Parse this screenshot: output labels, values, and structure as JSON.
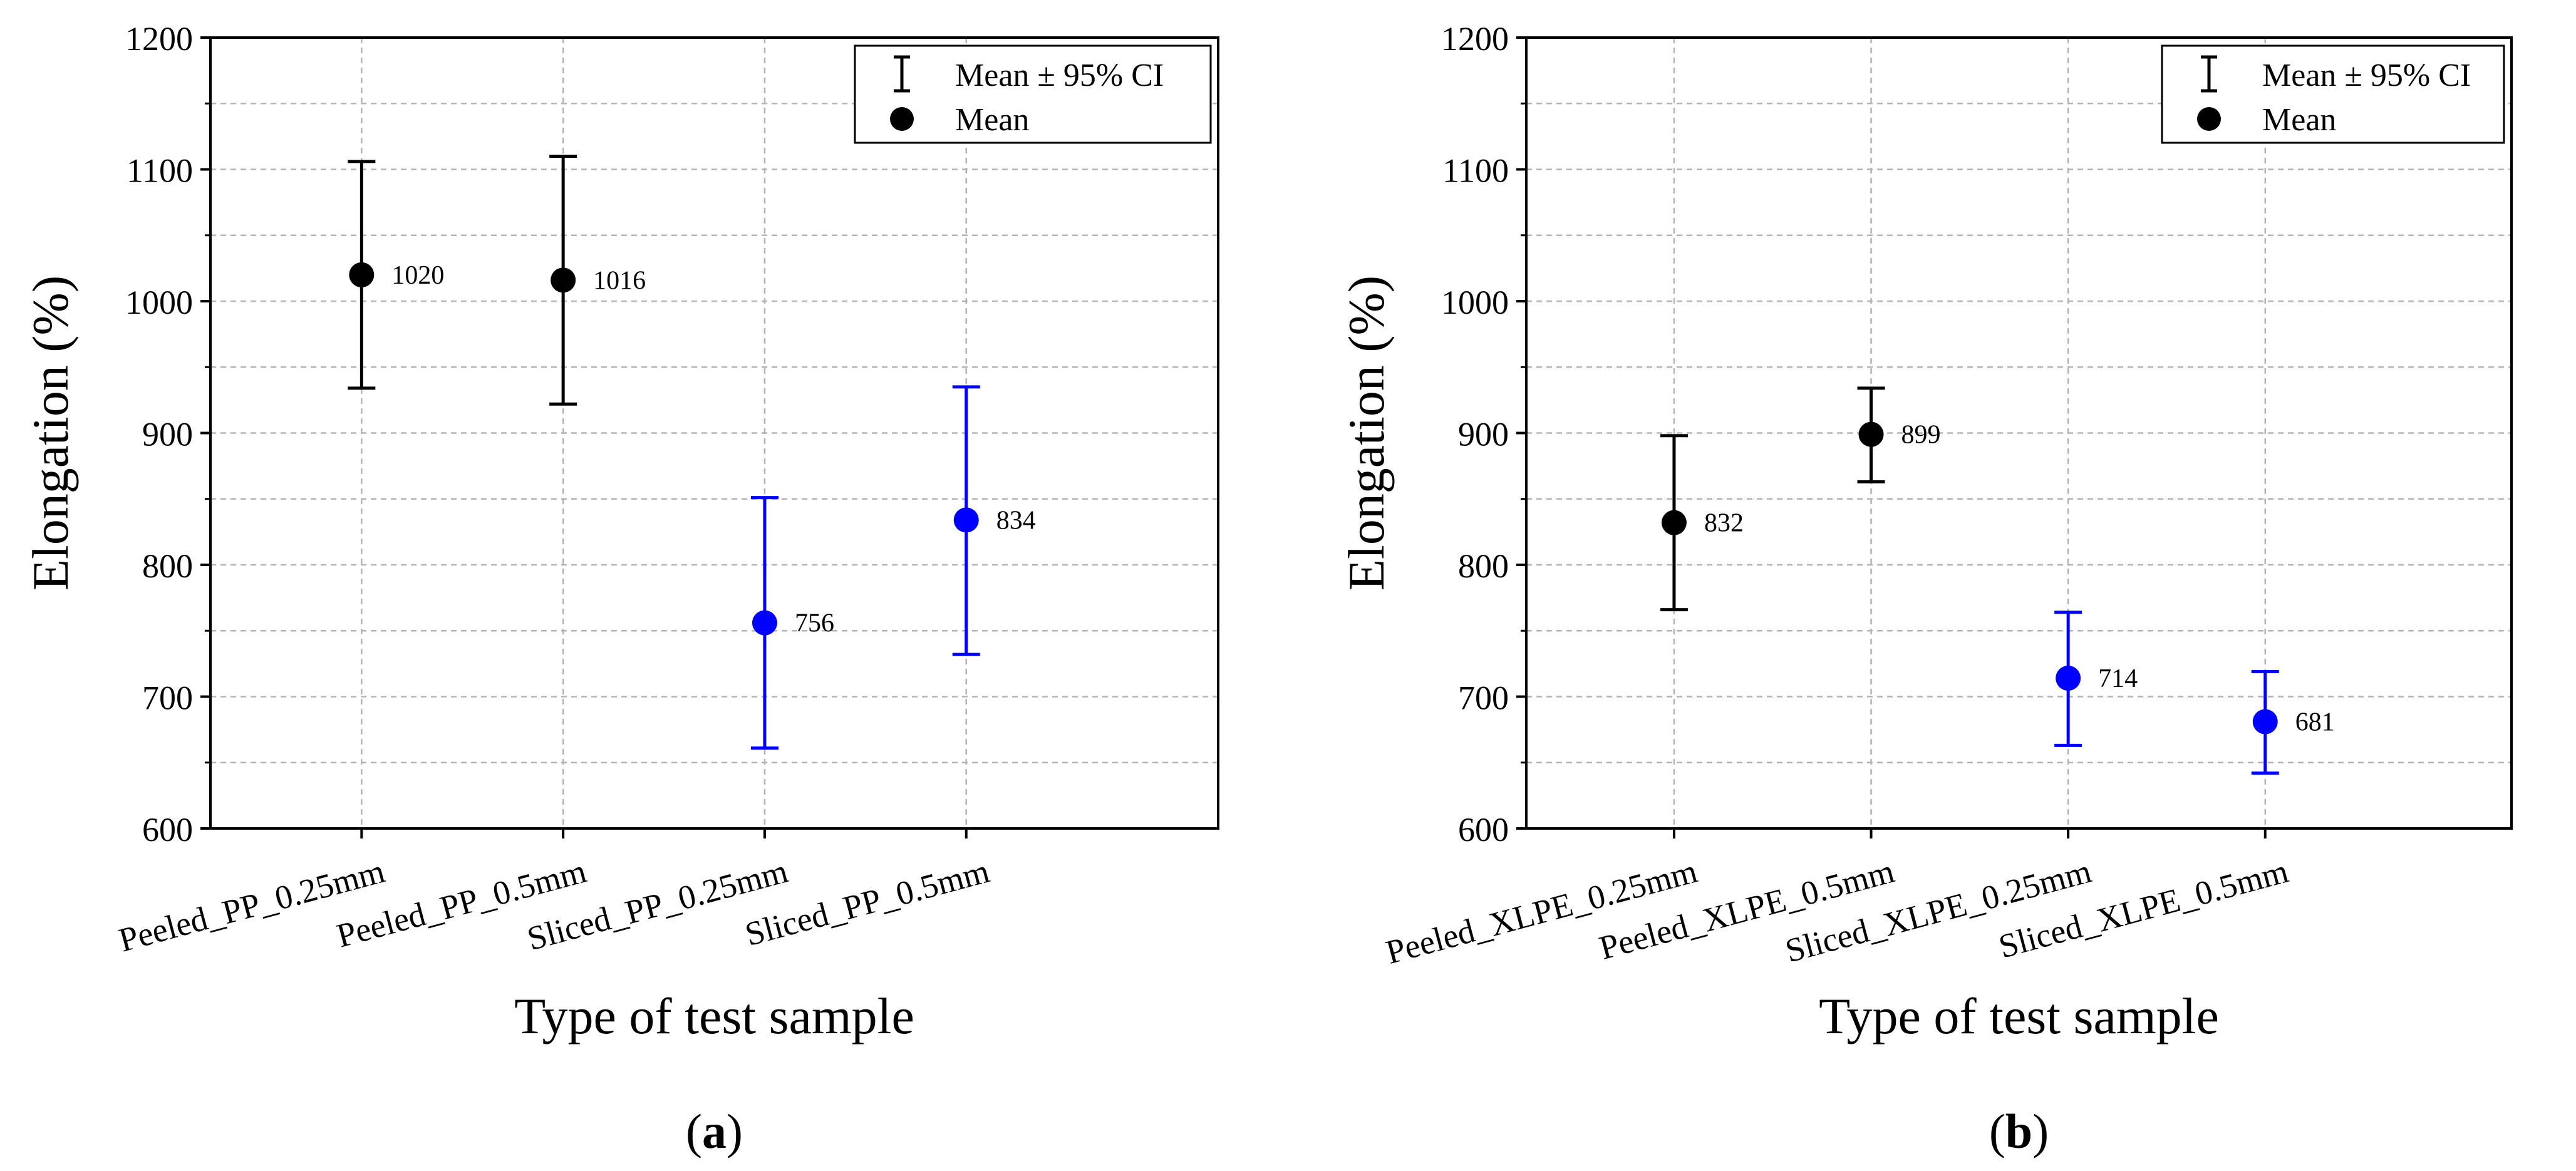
{
  "chart_data": [
    {
      "type": "scatter",
      "subtitle": "(a)",
      "subtitle_letter": "a",
      "xlabel": "Type of test sample",
      "ylabel": "Elongation (%)",
      "ylim": [
        600,
        1200
      ],
      "yticks": [
        600,
        700,
        800,
        900,
        1000,
        1100,
        1200
      ],
      "grid": true,
      "legend": {
        "placement": "top-right",
        "errorbar_label": "Mean ± 95% CI",
        "point_label": "Mean"
      },
      "categories": [
        "Peeled_PP_0.25mm",
        "Peeled_PP_0.5mm",
        "Sliced_PP_0.25mm",
        "Sliced_PP_0.5mm"
      ],
      "points": [
        {
          "category": "Peeled_PP_0.25mm",
          "mean": 1020,
          "ci_low": 934,
          "ci_high": 1106,
          "label": "1020",
          "color": "#000000"
        },
        {
          "category": "Peeled_PP_0.5mm",
          "mean": 1016,
          "ci_low": 922,
          "ci_high": 1110,
          "label": "1016",
          "color": "#000000"
        },
        {
          "category": "Sliced_PP_0.25mm",
          "mean": 756,
          "ci_low": 661,
          "ci_high": 851,
          "label": "756",
          "color": "#0000ff"
        },
        {
          "category": "Sliced_PP_0.5mm",
          "mean": 834,
          "ci_low": 732,
          "ci_high": 935,
          "label": "834",
          "color": "#0000ff"
        }
      ]
    },
    {
      "type": "scatter",
      "subtitle": "(b)",
      "subtitle_letter": "b",
      "xlabel": "Type of test sample",
      "ylabel": "Elongation (%)",
      "ylim": [
        600,
        1200
      ],
      "yticks": [
        600,
        700,
        800,
        900,
        1000,
        1100,
        1200
      ],
      "grid": true,
      "legend": {
        "placement": "top-right",
        "errorbar_label": "Mean ± 95% CI",
        "point_label": "Mean"
      },
      "categories": [
        "Peeled_XLPE_0.25mm",
        "Peeled_XLPE_0.5mm",
        "Sliced_XLPE_0.25mm",
        "Sliced_XLPE_0.5mm"
      ],
      "points": [
        {
          "category": "Peeled_XLPE_0.25mm",
          "mean": 832,
          "ci_low": 766,
          "ci_high": 898,
          "label": "832",
          "color": "#000000"
        },
        {
          "category": "Peeled_XLPE_0.5mm",
          "mean": 899,
          "ci_low": 863,
          "ci_high": 934,
          "label": "899",
          "color": "#000000"
        },
        {
          "category": "Sliced_XLPE_0.25mm",
          "mean": 714,
          "ci_low": 663,
          "ci_high": 764,
          "label": "714",
          "color": "#0000ff"
        },
        {
          "category": "Sliced_XLPE_0.5mm",
          "mean": 681,
          "ci_low": 642,
          "ci_high": 719,
          "label": "681",
          "color": "#0000ff"
        }
      ]
    }
  ]
}
